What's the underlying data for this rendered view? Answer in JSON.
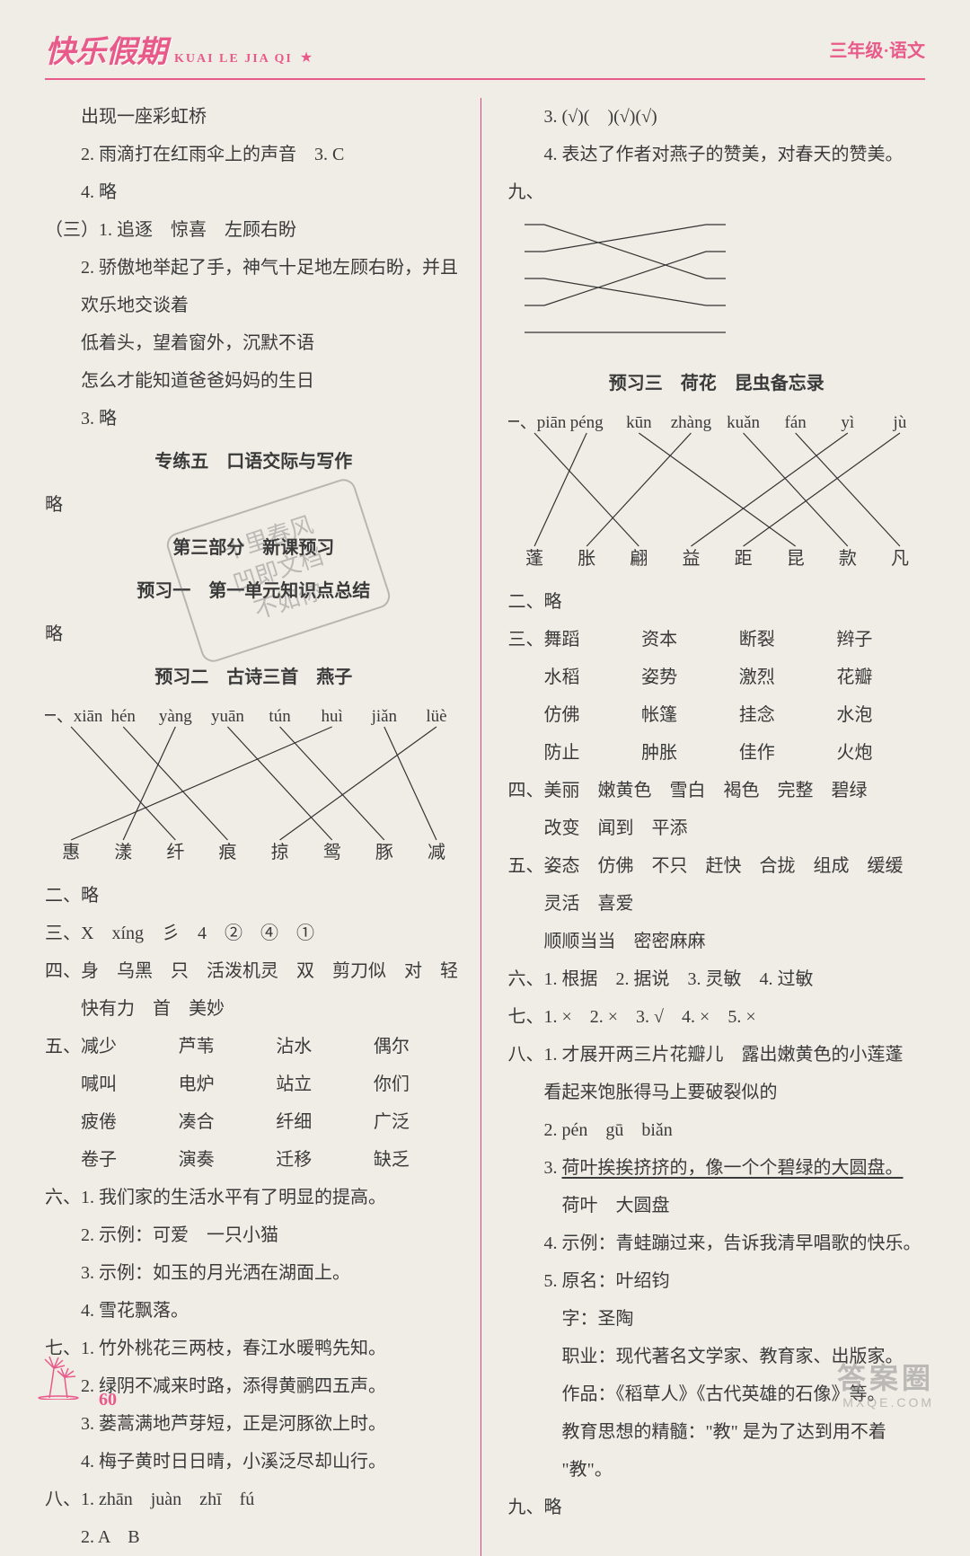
{
  "header": {
    "logo_cn": "快乐假期",
    "logo_pinyin": "KUAI LE JIA QI",
    "logo_star": "★",
    "grade": "三年级·语文"
  },
  "stamp": {
    "l1": "十里春风",
    "l2": "凹即文档",
    "l3": "不如你"
  },
  "left": {
    "t01": "出现一座彩虹桥",
    "t02": "2. 雨滴打在红雨伞上的声音　3. C",
    "t03": "4. 略",
    "t04": "（三）1. 追逐　惊喜　左顾右盼",
    "t05": "2. 骄傲地举起了手，神气十足地左顾右盼，并且",
    "t06": "欢乐地交谈着",
    "t07": "低着头，望着窗外，沉默不语",
    "t08": "怎么才能知道爸爸妈妈的生日",
    "t09": "3. 略",
    "sec5": "专练五　口语交际与写作",
    "t10": "略",
    "part3": "第三部分　新课预习",
    "pre1": "预习一　第一单元知识点总结",
    "t11": "略",
    "pre2": "预习二　古诗三首　燕子",
    "match1": {
      "top": [
        "xiān",
        "hén",
        "yàng",
        "yuān",
        "tún",
        "huì",
        "jiǎn",
        "lüè"
      ],
      "bottom": [
        "惠",
        "漾",
        "纤",
        "痕",
        "掠",
        "鸳",
        "豚",
        "减"
      ],
      "edges": [
        [
          0,
          2
        ],
        [
          1,
          3
        ],
        [
          2,
          1
        ],
        [
          3,
          5
        ],
        [
          4,
          6
        ],
        [
          5,
          0
        ],
        [
          6,
          7
        ],
        [
          7,
          4
        ]
      ],
      "line_color": "#333333"
    },
    "t12": "二、略",
    "t13": "三、X　xíng　彡　4　②　④　①",
    "t14": "四、身　乌黑　只　活泼机灵　双　剪刀似　对　轻",
    "t14b": "快有力　首　美妙",
    "g5label": "五、",
    "g5": [
      [
        "减少",
        "芦苇",
        "沾水",
        "偶尔"
      ],
      [
        "喊叫",
        "电炉",
        "站立",
        "你们"
      ],
      [
        "疲倦",
        "凑合",
        "纤细",
        "广泛"
      ],
      [
        "卷子",
        "演奏",
        "迁移",
        "缺乏"
      ]
    ],
    "t20": "六、1. 我们家的生活水平有了明显的提高。",
    "t21": "2. 示例：可爱　一只小猫",
    "t22": "3. 示例：如玉的月光洒在湖面上。",
    "t23": "4. 雪花飘落。",
    "t24": "七、1. 竹外桃花三两枝，春江水暖鸭先知。",
    "t25": "2. 绿阴不减来时路，添得黄鹂四五声。",
    "t26": "3. 蒌蒿满地芦芽短，正是河豚欲上时。",
    "t27": "4. 梅子黄时日日晴，小溪泛尽却山行。",
    "t28": "八、1. zhān　juàn　zhī　fú",
    "t29": "2. A　B"
  },
  "right": {
    "t01": "3. (√)(　)(√)(√)",
    "t02": "4. 表达了作者对燕子的赞美，对春天的赞美。",
    "t03": "九、",
    "match2": {
      "left_y": [
        0,
        30,
        60,
        90,
        120
      ],
      "right_y": [
        0,
        30,
        60,
        90,
        120
      ],
      "edges": [
        [
          0,
          2
        ],
        [
          1,
          0
        ],
        [
          2,
          3
        ],
        [
          3,
          1
        ],
        [
          4,
          4
        ]
      ],
      "line_color": "#333333"
    },
    "pre3": "预习三　荷花　昆虫备忘录",
    "match3": {
      "top": [
        "piān",
        "péng",
        "kūn",
        "zhàng",
        "kuǎn",
        "fán",
        "yì",
        "jù"
      ],
      "bottom": [
        "蓬",
        "胀",
        "翩",
        "益",
        "距",
        "昆",
        "款",
        "凡"
      ],
      "edges": [
        [
          0,
          2
        ],
        [
          1,
          0
        ],
        [
          2,
          5
        ],
        [
          3,
          1
        ],
        [
          4,
          6
        ],
        [
          5,
          7
        ],
        [
          6,
          3
        ],
        [
          7,
          4
        ]
      ],
      "line_color": "#333333"
    },
    "t04": "二、略",
    "g3label": "三、",
    "g3": [
      [
        "舞蹈",
        "资本",
        "断裂",
        "辫子"
      ],
      [
        "水稻",
        "姿势",
        "激烈",
        "花瓣"
      ],
      [
        "仿佛",
        "帐篷",
        "挂念",
        "水泡"
      ],
      [
        "防止",
        "肿胀",
        "佳作",
        "火炮"
      ]
    ],
    "t09": "四、美丽　嫩黄色　雪白　褐色　完整　碧绿",
    "t10": "改变　闻到　平添",
    "t11": "五、姿态　仿佛　不只　赶快　合拢　组成　缓缓",
    "t12": "灵活　喜爱",
    "t13": "顺顺当当　密密麻麻",
    "t14": "六、1. 根据　2. 据说　3. 灵敏　4. 过敏",
    "t15": "七、1. ×　2. ×　3. √　4. ×　5. ×",
    "t16": "八、1. 才展开两三片花瓣儿　露出嫩黄色的小莲蓬",
    "t17": "看起来饱胀得马上要破裂似的",
    "t18": "2. pén　gū　biǎn",
    "t19a": "3. ",
    "t19u": "荷叶挨挨挤挤的，像一个个碧绿的大圆盘。",
    "t20": "荷叶　大圆盘",
    "t21": "4. 示例：青蛙蹦过来，告诉我清早唱歌的快乐。",
    "t22": "5. 原名：叶绍钧",
    "t23": "字：圣陶",
    "t24": "职业：现代著名文学家、教育家、出版家。",
    "t25": "作品：《稻草人》《古代英雄的石像》等。",
    "t26": "教育思想的精髓：\"教\" 是为了达到用不着",
    "t27": "\"教\"。",
    "t28": "九、略"
  },
  "footer": {
    "page": "60"
  },
  "watermark": {
    "l1": "答案圈",
    "l2": "MXQE.COM"
  }
}
